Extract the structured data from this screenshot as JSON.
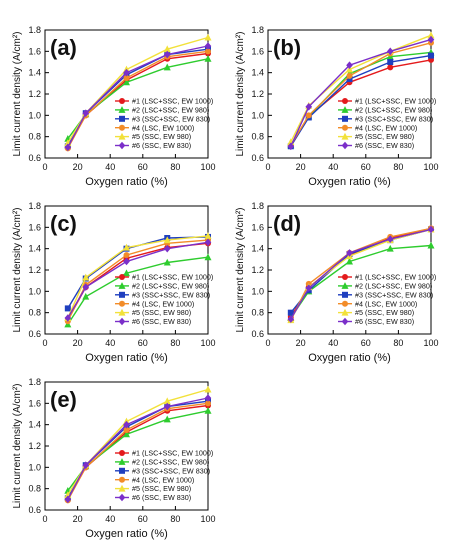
{
  "series_styles": [
    {
      "name": "#1 (LSC+SSC, EW 1000)",
      "color": "#e41a1c",
      "marker": "circle"
    },
    {
      "name": "#2 (LSC+SSC, EW 980)",
      "color": "#2ecc2e",
      "marker": "triangle"
    },
    {
      "name": "#3 (SSC+SSC, EW 830)",
      "color": "#1f3fbf",
      "marker": "square"
    },
    {
      "name": "#4 (LSC, EW 1000)",
      "color": "#f28c28",
      "marker": "circle"
    },
    {
      "name": "#5 (SSC, EW 980)",
      "color": "#f2e13a",
      "marker": "triangle"
    },
    {
      "name": "#6 (SSC, EW 830)",
      "color": "#7b2fc9",
      "marker": "diamond"
    }
  ],
  "chart_data": [
    {
      "type": "line",
      "panel_label": "(a)",
      "xlabel": "Oxygen ratio (%)",
      "ylabel": "Limit current density (A/cm²)",
      "xlim": [
        0,
        100
      ],
      "ylim": [
        0.6,
        1.8
      ],
      "xticks": [
        0,
        20,
        40,
        60,
        80,
        100
      ],
      "yticks": [
        0.6,
        0.8,
        1.0,
        1.2,
        1.4,
        1.6,
        1.8
      ],
      "legend_position": "bottom-right",
      "x": [
        14,
        25,
        50,
        75,
        100
      ],
      "series": [
        {
          "name": "#1 (LSC+SSC, EW 1000)",
          "values": [
            0.7,
            1.0,
            1.33,
            1.53,
            1.58
          ]
        },
        {
          "name": "#2 (LSC+SSC, EW 980)",
          "values": [
            0.78,
            1.01,
            1.31,
            1.45,
            1.53
          ]
        },
        {
          "name": "#3 (SSC+SSC, EW 830)",
          "values": [
            0.71,
            1.02,
            1.38,
            1.57,
            1.62
          ]
        },
        {
          "name": "#4 (LSC, EW 1000)",
          "values": [
            0.69,
            1.0,
            1.35,
            1.55,
            1.6
          ]
        },
        {
          "name": "#5 (SSC, EW 980)",
          "values": [
            0.74,
            1.02,
            1.43,
            1.62,
            1.73
          ]
        },
        {
          "name": "#6 (SSC, EW 830)",
          "values": [
            0.7,
            1.02,
            1.4,
            1.57,
            1.65
          ]
        }
      ]
    },
    {
      "type": "line",
      "panel_label": "(b)",
      "xlabel": "Oxygen ratio (%)",
      "ylabel": "Limit current density (A/cm²)",
      "xlim": [
        0,
        100
      ],
      "ylim": [
        0.6,
        1.8
      ],
      "xticks": [
        0,
        20,
        40,
        60,
        80,
        100
      ],
      "yticks": [
        0.6,
        0.8,
        1.0,
        1.2,
        1.4,
        1.6,
        1.8
      ],
      "legend_position": "bottom-right",
      "x": [
        14,
        25,
        50,
        75,
        100
      ],
      "series": [
        {
          "name": "#1 (LSC+SSC, EW 1000)",
          "values": [
            0.71,
            0.99,
            1.31,
            1.45,
            1.52
          ]
        },
        {
          "name": "#2 (LSC+SSC, EW 980)",
          "values": [
            0.72,
            0.99,
            1.39,
            1.55,
            1.59
          ]
        },
        {
          "name": "#3 (SSC+SSC, EW 830)",
          "values": [
            0.71,
            0.98,
            1.34,
            1.5,
            1.56
          ]
        },
        {
          "name": "#4 (LSC, EW 1000)",
          "values": [
            0.72,
            1.0,
            1.37,
            1.58,
            1.68
          ]
        },
        {
          "name": "#5 (SSC, EW 980)",
          "values": [
            0.75,
            1.09,
            1.43,
            1.6,
            1.75
          ]
        },
        {
          "name": "#6 (SSC, EW 830)",
          "values": [
            0.71,
            1.08,
            1.47,
            1.6,
            1.71
          ]
        }
      ]
    },
    {
      "type": "line",
      "panel_label": "(c)",
      "xlabel": "Oxygen ratio (%)",
      "ylabel": "Limit current density (A/cm²)",
      "xlim": [
        0,
        100
      ],
      "ylim": [
        0.6,
        1.8
      ],
      "xticks": [
        0,
        20,
        40,
        60,
        80,
        100
      ],
      "yticks": [
        0.6,
        0.8,
        1.0,
        1.2,
        1.4,
        1.6,
        1.8
      ],
      "legend_position": "bottom-right",
      "x": [
        14,
        25,
        50,
        75,
        100
      ],
      "series": [
        {
          "name": "#1 (LSC+SSC, EW 1000)",
          "values": [
            0.73,
            1.04,
            1.31,
            1.41,
            1.45
          ]
        },
        {
          "name": "#2 (LSC+SSC, EW 980)",
          "values": [
            0.69,
            0.95,
            1.17,
            1.27,
            1.32
          ]
        },
        {
          "name": "#3 (SSC+SSC, EW 830)",
          "values": [
            0.84,
            1.12,
            1.4,
            1.5,
            1.51
          ]
        },
        {
          "name": "#4 (LSC, EW 1000)",
          "values": [
            0.72,
            1.06,
            1.34,
            1.45,
            1.48
          ]
        },
        {
          "name": "#5 (SSC, EW 980)",
          "values": [
            0.75,
            1.13,
            1.41,
            1.48,
            1.52
          ]
        },
        {
          "name": "#6 (SSC, EW 830)",
          "values": [
            0.75,
            1.04,
            1.28,
            1.4,
            1.46
          ]
        }
      ]
    },
    {
      "type": "line",
      "panel_label": "(d)",
      "xlabel": "Oxygen ratio (%)",
      "ylabel": "Limit current density (A/cm²)",
      "xlim": [
        0,
        100
      ],
      "ylim": [
        0.6,
        1.8
      ],
      "xticks": [
        0,
        20,
        40,
        60,
        80,
        100
      ],
      "yticks": [
        0.6,
        0.8,
        1.0,
        1.2,
        1.4,
        1.6,
        1.8
      ],
      "legend_position": "bottom-right",
      "x": [
        14,
        25,
        50,
        75,
        100
      ],
      "series": [
        {
          "name": "#1 (LSC+SSC, EW 1000)",
          "values": [
            0.76,
            1.04,
            1.34,
            1.5,
            1.59
          ]
        },
        {
          "name": "#2 (LSC+SSC, EW 980)",
          "values": [
            0.75,
            1.0,
            1.28,
            1.4,
            1.43
          ]
        },
        {
          "name": "#3 (SSC+SSC, EW 830)",
          "values": [
            0.8,
            1.01,
            1.35,
            1.48,
            1.58
          ]
        },
        {
          "name": "#4 (LSC, EW 1000)",
          "values": [
            0.73,
            1.07,
            1.36,
            1.51,
            1.59
          ]
        },
        {
          "name": "#5 (SSC, EW 980)",
          "values": [
            0.73,
            1.04,
            1.33,
            1.48,
            1.58
          ]
        },
        {
          "name": "#6 (SSC, EW 830)",
          "values": [
            0.74,
            1.03,
            1.36,
            1.49,
            1.58
          ]
        }
      ]
    },
    {
      "type": "line",
      "panel_label": "(e)",
      "xlabel": "Oxygen ratio (%)",
      "ylabel": "Limit current density (A/cm²)",
      "xlim": [
        0,
        100
      ],
      "ylim": [
        0.6,
        1.8
      ],
      "xticks": [
        0,
        20,
        40,
        60,
        80,
        100
      ],
      "yticks": [
        0.6,
        0.8,
        1.0,
        1.2,
        1.4,
        1.6,
        1.8
      ],
      "legend_position": "bottom-right",
      "x": [
        14,
        25,
        50,
        75,
        100
      ],
      "series": [
        {
          "name": "#1 (LSC+SSC, EW 1000)",
          "values": [
            0.7,
            1.0,
            1.33,
            1.53,
            1.58
          ]
        },
        {
          "name": "#2 (LSC+SSC, EW 980)",
          "values": [
            0.78,
            1.01,
            1.31,
            1.45,
            1.53
          ]
        },
        {
          "name": "#3 (SSC+SSC, EW 830)",
          "values": [
            0.71,
            1.02,
            1.38,
            1.57,
            1.62
          ]
        },
        {
          "name": "#4 (LSC, EW 1000)",
          "values": [
            0.69,
            1.0,
            1.35,
            1.55,
            1.6
          ]
        },
        {
          "name": "#5 (SSC, EW 980)",
          "values": [
            0.74,
            1.02,
            1.43,
            1.62,
            1.73
          ]
        },
        {
          "name": "#6 (SSC, EW 830)",
          "values": [
            0.7,
            1.02,
            1.4,
            1.57,
            1.65
          ]
        }
      ]
    }
  ]
}
